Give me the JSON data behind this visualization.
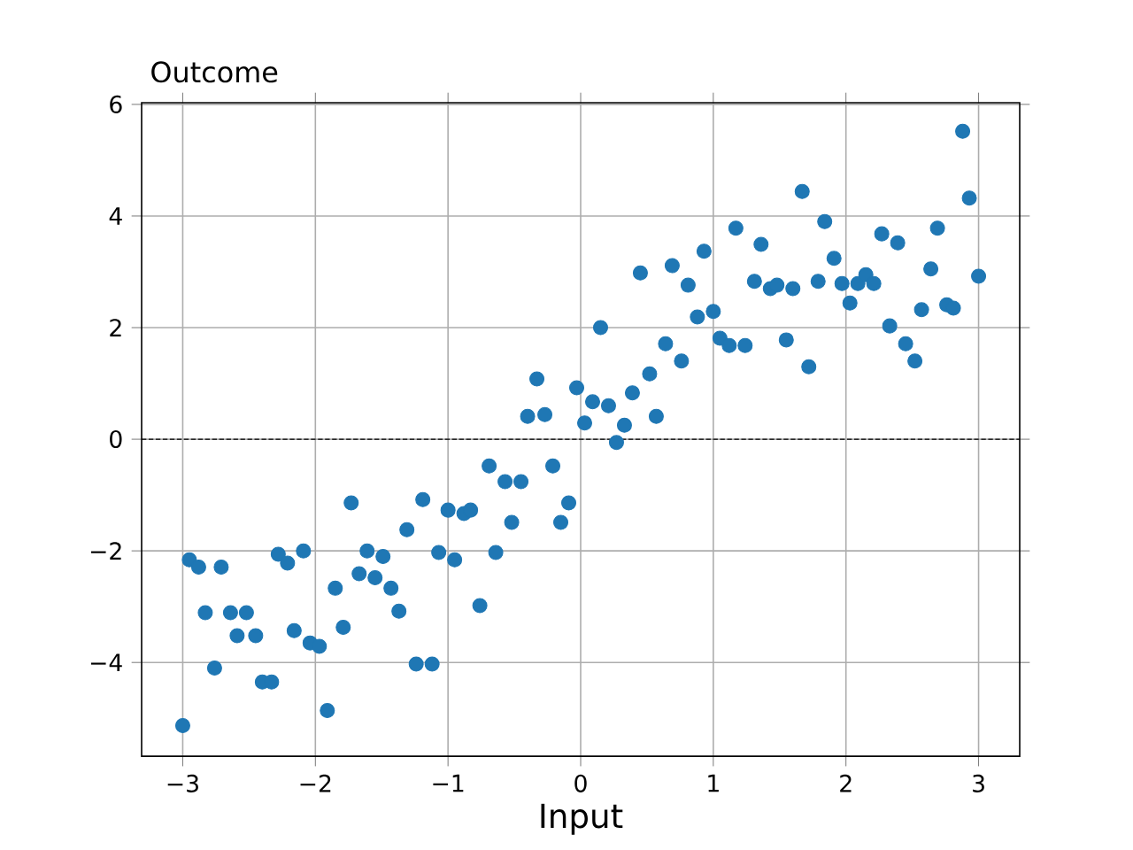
{
  "chart_data": {
    "type": "scatter",
    "title": "Outcome",
    "xlabel": "Input",
    "xlim": [
      -3.31,
      3.31
    ],
    "xticks": [
      {
        "value": -3,
        "label": "−3"
      },
      {
        "value": -2,
        "label": "−2"
      },
      {
        "value": -1,
        "label": "−1"
      },
      0,
      1,
      2,
      3
    ],
    "ylim": [
      -5.68,
      6.03
    ],
    "yticks": [
      {
        "value": -4,
        "label": "−4"
      },
      {
        "value": -2,
        "label": "−2"
      },
      0,
      2,
      4,
      6
    ],
    "grid": true,
    "marker": "circle",
    "ref_lines": [
      {
        "axis": "y",
        "value": 0,
        "color": "#000000",
        "line_style": "dashed"
      }
    ],
    "series": [
      {
        "color": "#1f77b4",
        "x": [
          -3.0,
          -2.95,
          -2.88,
          -2.83,
          -2.76,
          -2.71,
          -2.64,
          -2.59,
          -2.52,
          -2.45,
          -2.4,
          -2.33,
          -2.28,
          -2.21,
          -2.16,
          -2.09,
          -2.04,
          -1.97,
          -1.91,
          -1.85,
          -1.79,
          -1.73,
          -1.67,
          -1.61,
          -1.55,
          -1.49,
          -1.43,
          -1.37,
          -1.31,
          -1.24,
          -1.19,
          -1.12,
          -1.07,
          -1.0,
          -0.95,
          -0.88,
          -0.83,
          -0.76,
          -0.69,
          -0.64,
          -0.57,
          -0.52,
          -0.45,
          -0.4,
          -0.33,
          -0.27,
          -0.21,
          -0.15,
          -0.09,
          -0.03,
          0.03,
          0.09,
          0.15,
          0.21,
          0.27,
          0.33,
          0.39,
          0.45,
          0.52,
          0.57,
          0.64,
          0.69,
          0.76,
          0.81,
          0.88,
          0.93,
          1.0,
          1.05,
          1.12,
          1.17,
          1.24,
          1.31,
          1.36,
          1.43,
          1.48,
          1.55,
          1.6,
          1.67,
          1.72,
          1.79,
          1.84,
          1.91,
          1.97,
          2.03,
          2.09,
          2.15,
          2.21,
          2.27,
          2.33,
          2.39,
          2.45,
          2.52,
          2.57,
          2.64,
          2.69,
          2.76,
          2.81,
          2.88,
          2.93,
          3.0
        ],
        "values": [
          -5.13,
          -2.16,
          -2.29,
          -3.11,
          -4.1,
          -2.29,
          -3.11,
          -3.52,
          -3.11,
          -3.52,
          -4.35,
          -4.35,
          -2.06,
          -2.22,
          -3.43,
          -2.0,
          -3.65,
          -3.71,
          -4.86,
          -2.67,
          -3.37,
          -1.14,
          -2.41,
          -2.0,
          -2.48,
          -2.1,
          -2.67,
          -3.08,
          -1.62,
          -4.03,
          -1.08,
          -4.03,
          -2.03,
          -1.27,
          -2.16,
          -1.33,
          -1.27,
          -2.98,
          -0.48,
          -2.03,
          -0.76,
          -1.49,
          -0.76,
          0.41,
          1.08,
          0.44,
          -0.48,
          -1.49,
          -1.14,
          0.92,
          0.29,
          0.67,
          2.0,
          0.6,
          -0.06,
          0.25,
          0.83,
          2.98,
          1.17,
          0.41,
          1.71,
          3.11,
          1.4,
          2.76,
          2.19,
          3.37,
          2.29,
          1.81,
          1.68,
          3.78,
          1.68,
          2.83,
          3.49,
          2.7,
          2.76,
          1.78,
          2.7,
          4.44,
          1.3,
          2.83,
          3.9,
          3.24,
          2.79,
          2.44,
          2.79,
          2.95,
          2.79,
          3.68,
          2.03,
          3.52,
          1.71,
          1.4,
          2.32,
          3.05,
          3.78,
          2.41,
          2.35,
          5.52,
          4.32,
          2.92
        ]
      }
    ]
  }
}
